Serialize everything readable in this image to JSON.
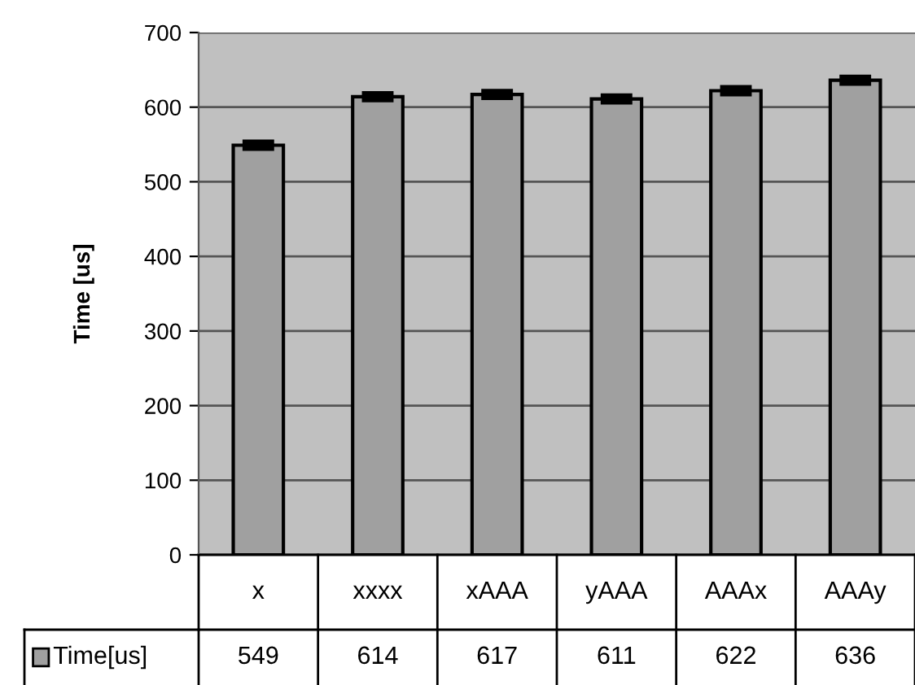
{
  "chart_data": {
    "type": "bar",
    "ylabel": "Time [us]",
    "categories": [
      "x",
      "xxxx",
      "xAAA",
      "yAAA",
      "AAAx",
      "AAAy"
    ],
    "series": [
      {
        "name": "Time[us]",
        "color": "#a0a0a0",
        "values": [
          549,
          614,
          617,
          611,
          622,
          636
        ],
        "errors": [
          3,
          3,
          3,
          3,
          3,
          3
        ]
      }
    ],
    "data_labels": true,
    "ylim": [
      0,
      700
    ],
    "yticks": [
      0,
      100,
      200,
      300,
      400,
      500,
      600,
      700
    ],
    "grid": "y",
    "legend": "bottom"
  }
}
